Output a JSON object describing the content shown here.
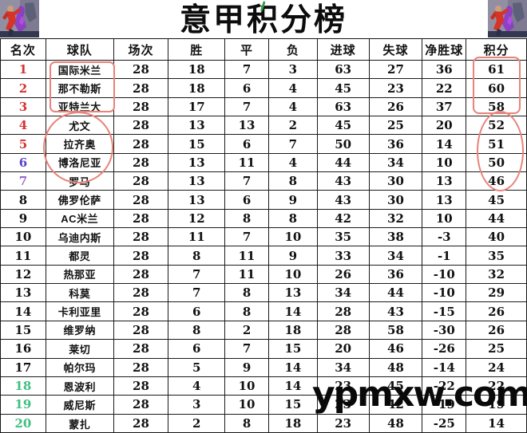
{
  "title": "意甲积分榜",
  "watermark": "ypmxw.com",
  "colors": {
    "rank_top5": "#d63333",
    "rank_6": "#5b43c8",
    "rank_7": "#9a66cc",
    "rank_relegation": "#3fbf80",
    "text": "#111111",
    "annotation_red": "#e8837a"
  },
  "annotations": [
    {
      "shape": "rectangle",
      "color": "#e8837a",
      "around": "team names of ranks 1-3"
    },
    {
      "shape": "ellipse",
      "color": "#e8837a",
      "around": "team names of ranks 4-6"
    },
    {
      "shape": "rectangle",
      "color": "#e8837a",
      "around": "points of ranks 1-3 (61/60/58)"
    },
    {
      "shape": "ellipse",
      "color": "#e8837a",
      "around": "points of ranks 4-7 (52/51/50/46)"
    }
  ],
  "chart_data": {
    "type": "table",
    "title": "意甲积分榜",
    "columns": [
      "名次",
      "球队",
      "场次",
      "胜",
      "平",
      "负",
      "进球",
      "失球",
      "净胜球",
      "积分"
    ],
    "rows": [
      {
        "rank": 1,
        "team": "国际米兰",
        "played": 28,
        "won": 18,
        "drawn": 7,
        "lost": 3,
        "goals_for": 63,
        "goals_against": 27,
        "goal_diff": 36,
        "points": 61,
        "rank_color": "#d63333"
      },
      {
        "rank": 2,
        "team": "那不勒斯",
        "played": 28,
        "won": 18,
        "drawn": 6,
        "lost": 4,
        "goals_for": 45,
        "goals_against": 23,
        "goal_diff": 22,
        "points": 60,
        "rank_color": "#d63333"
      },
      {
        "rank": 3,
        "team": "亚特兰大",
        "played": 28,
        "won": 17,
        "drawn": 7,
        "lost": 4,
        "goals_for": 63,
        "goals_against": 26,
        "goal_diff": 37,
        "points": 58,
        "rank_color": "#d63333"
      },
      {
        "rank": 4,
        "team": "尤文",
        "played": 28,
        "won": 13,
        "drawn": 13,
        "lost": 2,
        "goals_for": 45,
        "goals_against": 25,
        "goal_diff": 20,
        "points": 52,
        "rank_color": "#d63333"
      },
      {
        "rank": 5,
        "team": "拉齐奥",
        "played": 28,
        "won": 15,
        "drawn": 6,
        "lost": 7,
        "goals_for": 50,
        "goals_against": 36,
        "goal_diff": 14,
        "points": 51,
        "rank_color": "#d63333"
      },
      {
        "rank": 6,
        "team": "博洛尼亚",
        "played": 28,
        "won": 13,
        "drawn": 11,
        "lost": 4,
        "goals_for": 44,
        "goals_against": 34,
        "goal_diff": 10,
        "points": 50,
        "rank_color": "#5b43c8"
      },
      {
        "rank": 7,
        "team": "罗马",
        "played": 28,
        "won": 13,
        "drawn": 7,
        "lost": 8,
        "goals_for": 43,
        "goals_against": 30,
        "goal_diff": 13,
        "points": 46,
        "rank_color": "#9a66cc"
      },
      {
        "rank": 8,
        "team": "佛罗伦萨",
        "played": 28,
        "won": 13,
        "drawn": 6,
        "lost": 9,
        "goals_for": 43,
        "goals_against": 30,
        "goal_diff": 13,
        "points": 45,
        "rank_color": "#111111"
      },
      {
        "rank": 9,
        "team": "AC米兰",
        "played": 28,
        "won": 12,
        "drawn": 8,
        "lost": 8,
        "goals_for": 42,
        "goals_against": 32,
        "goal_diff": 10,
        "points": 44,
        "rank_color": "#111111"
      },
      {
        "rank": 10,
        "team": "乌迪内斯",
        "played": 28,
        "won": 11,
        "drawn": 7,
        "lost": 10,
        "goals_for": 35,
        "goals_against": 38,
        "goal_diff": -3,
        "points": 40,
        "rank_color": "#111111"
      },
      {
        "rank": 11,
        "team": "都灵",
        "played": 28,
        "won": 8,
        "drawn": 11,
        "lost": 9,
        "goals_for": 33,
        "goals_against": 34,
        "goal_diff": -1,
        "points": 35,
        "rank_color": "#111111"
      },
      {
        "rank": 12,
        "team": "热那亚",
        "played": 28,
        "won": 7,
        "drawn": 11,
        "lost": 10,
        "goals_for": 26,
        "goals_against": 36,
        "goal_diff": -10,
        "points": 32,
        "rank_color": "#111111"
      },
      {
        "rank": 13,
        "team": "科莫",
        "played": 28,
        "won": 7,
        "drawn": 8,
        "lost": 13,
        "goals_for": 34,
        "goals_against": 44,
        "goal_diff": -10,
        "points": 29,
        "rank_color": "#111111"
      },
      {
        "rank": 14,
        "team": "卡利亚里",
        "played": 28,
        "won": 6,
        "drawn": 8,
        "lost": 14,
        "goals_for": 28,
        "goals_against": 43,
        "goal_diff": -15,
        "points": 26,
        "rank_color": "#111111"
      },
      {
        "rank": 15,
        "team": "维罗纳",
        "played": 28,
        "won": 8,
        "drawn": 2,
        "lost": 18,
        "goals_for": 28,
        "goals_against": 58,
        "goal_diff": -30,
        "points": 26,
        "rank_color": "#111111"
      },
      {
        "rank": 16,
        "team": "莱切",
        "played": 28,
        "won": 6,
        "drawn": 7,
        "lost": 15,
        "goals_for": 20,
        "goals_against": 46,
        "goal_diff": -26,
        "points": 25,
        "rank_color": "#111111"
      },
      {
        "rank": 17,
        "team": "帕尔玛",
        "played": 28,
        "won": 5,
        "drawn": 9,
        "lost": 14,
        "goals_for": 34,
        "goals_against": 48,
        "goal_diff": -14,
        "points": 24,
        "rank_color": "#111111"
      },
      {
        "rank": 18,
        "team": "恩波利",
        "played": 28,
        "won": 4,
        "drawn": 10,
        "lost": 14,
        "goals_for": 23,
        "goals_against": 45,
        "goal_diff": -22,
        "points": 22,
        "rank_color": "#3fbf80"
      },
      {
        "rank": 19,
        "team": "威尼斯",
        "played": 28,
        "won": 3,
        "drawn": 10,
        "lost": 15,
        "goals_for": 23,
        "goals_against": 42,
        "goal_diff": -19,
        "points": 19,
        "rank_color": "#3fbf80"
      },
      {
        "rank": 20,
        "team": "蒙扎",
        "played": 28,
        "won": 2,
        "drawn": 8,
        "lost": 18,
        "goals_for": 23,
        "goals_against": 48,
        "goal_diff": -25,
        "points": 14,
        "rank_color": "#3fbf80"
      }
    ]
  }
}
